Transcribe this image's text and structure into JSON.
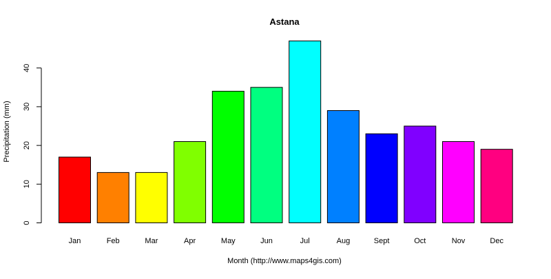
{
  "chart_data": {
    "type": "bar",
    "title": "Astana",
    "xlabel": "Month (http://www.maps4gis.com)",
    "ylabel": "Precipitation (mm)",
    "categories": [
      "Jan",
      "Feb",
      "Mar",
      "Apr",
      "May",
      "Jun",
      "Jul",
      "Aug",
      "Sept",
      "Oct",
      "Nov",
      "Dec"
    ],
    "values": [
      17,
      13,
      13,
      21,
      34,
      35,
      47,
      29,
      23,
      25,
      21,
      19
    ],
    "colors": [
      "#FF0000",
      "#FF8000",
      "#FFFF00",
      "#80FF00",
      "#00FF00",
      "#00FF80",
      "#00FFFF",
      "#0080FF",
      "#0000FF",
      "#8000FF",
      "#FF00FF",
      "#FF0080"
    ],
    "yticks": [
      0,
      10,
      20,
      30,
      40
    ],
    "ylim": [
      0,
      48
    ],
    "grid": false,
    "legend": "none"
  }
}
